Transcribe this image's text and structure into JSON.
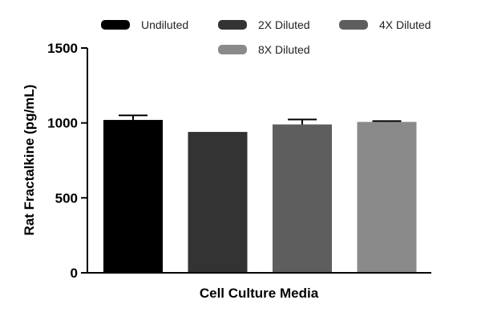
{
  "chart_data": {
    "type": "bar",
    "categories": [
      "Undiluted",
      "2X Diluted",
      "4X Diluted",
      "8X Diluted"
    ],
    "values": [
      1020,
      940,
      990,
      1007
    ],
    "error": [
      30,
      0,
      33,
      5
    ],
    "colors": [
      "#000000",
      "#333333",
      "#5e5e5e",
      "#8a8a8a"
    ],
    "xlabel": "Cell Culture Media",
    "ylabel": "Rat Fractalkine (pg/mL)",
    "ylim": [
      0,
      1500
    ],
    "yticks": [
      0,
      500,
      1000,
      1500
    ],
    "legend": {
      "position": "top",
      "entries": [
        "Undiluted",
        "2X Diluted",
        "4X Diluted",
        "8X Diluted"
      ]
    },
    "grid": false
  }
}
